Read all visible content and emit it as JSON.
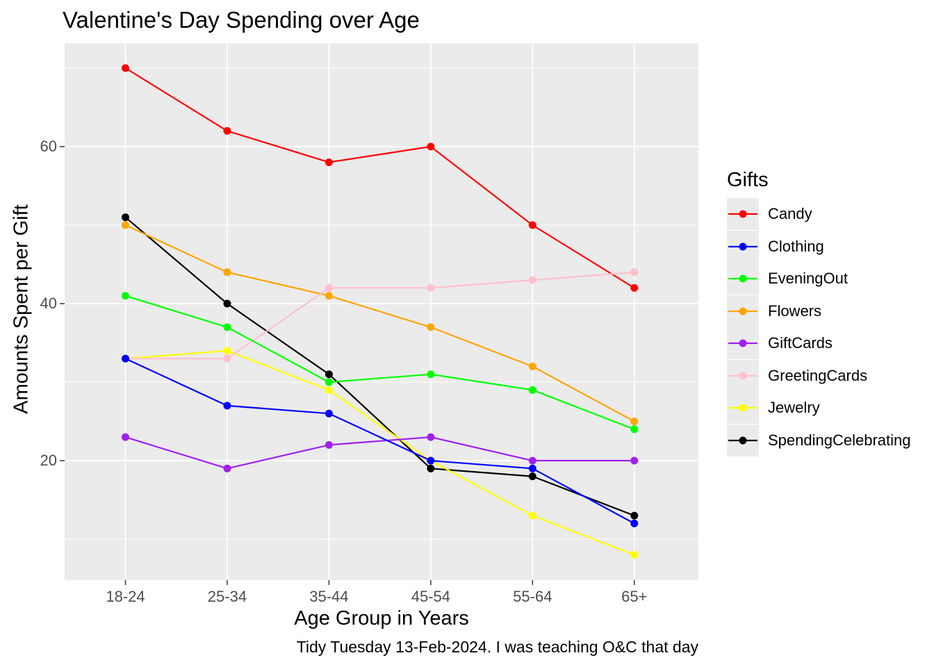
{
  "chart_data": {
    "type": "line",
    "title": "Valentine's Day Spending over Age",
    "xlabel": "Age Group in Years",
    "ylabel": "Amounts Spent per Gift",
    "caption": "Tidy Tuesday 13-Feb-2024. I was teaching O&C that day",
    "legend": {
      "title": "Gifts",
      "position": "right"
    },
    "categories": [
      "18-24",
      "25-34",
      "35-44",
      "45-54",
      "55-64",
      "65+"
    ],
    "y_axis": {
      "major_ticks": [
        60,
        40,
        20
      ],
      "minor_ticks": [
        70,
        50,
        30,
        10
      ],
      "range": [
        5,
        73
      ]
    },
    "grid": {
      "show": true,
      "color": "#FFFFFF"
    },
    "panel_background": "#EBEBEB",
    "legend_key_background": "#EBEBEB",
    "axis_text_color": "#4D4D4D",
    "tick_mark_color": "#333333",
    "series": [
      {
        "name": "Candy",
        "color": "#FF0000",
        "values": [
          70,
          62,
          58,
          60,
          50,
          42
        ]
      },
      {
        "name": "Clothing",
        "color": "#0000FF",
        "values": [
          33,
          27,
          26,
          20,
          19,
          12
        ]
      },
      {
        "name": "EveningOut",
        "color": "#00FF00",
        "values": [
          41,
          37,
          30,
          31,
          29,
          24
        ]
      },
      {
        "name": "Flowers",
        "color": "#FFA500",
        "values": [
          50,
          44,
          41,
          37,
          32,
          25
        ]
      },
      {
        "name": "GiftCards",
        "color": "#A020F0",
        "values": [
          23,
          19,
          22,
          23,
          20,
          20
        ]
      },
      {
        "name": "GreetingCards",
        "color": "#FFC0CB",
        "values": [
          33,
          33,
          42,
          42,
          43,
          44
        ]
      },
      {
        "name": "Jewelry",
        "color": "#FFFF00",
        "values": [
          33,
          34,
          29,
          20,
          13,
          8
        ]
      },
      {
        "name": "SpendingCelebrating",
        "color": "#000000",
        "values": [
          51,
          40,
          31,
          19,
          18,
          13
        ]
      }
    ],
    "draw_order": [
      "SpendingCelebrating",
      "Candy",
      "Flowers",
      "Jewelry",
      "GreetingCards",
      "GiftCards",
      "Clothing",
      "EveningOut"
    ]
  }
}
